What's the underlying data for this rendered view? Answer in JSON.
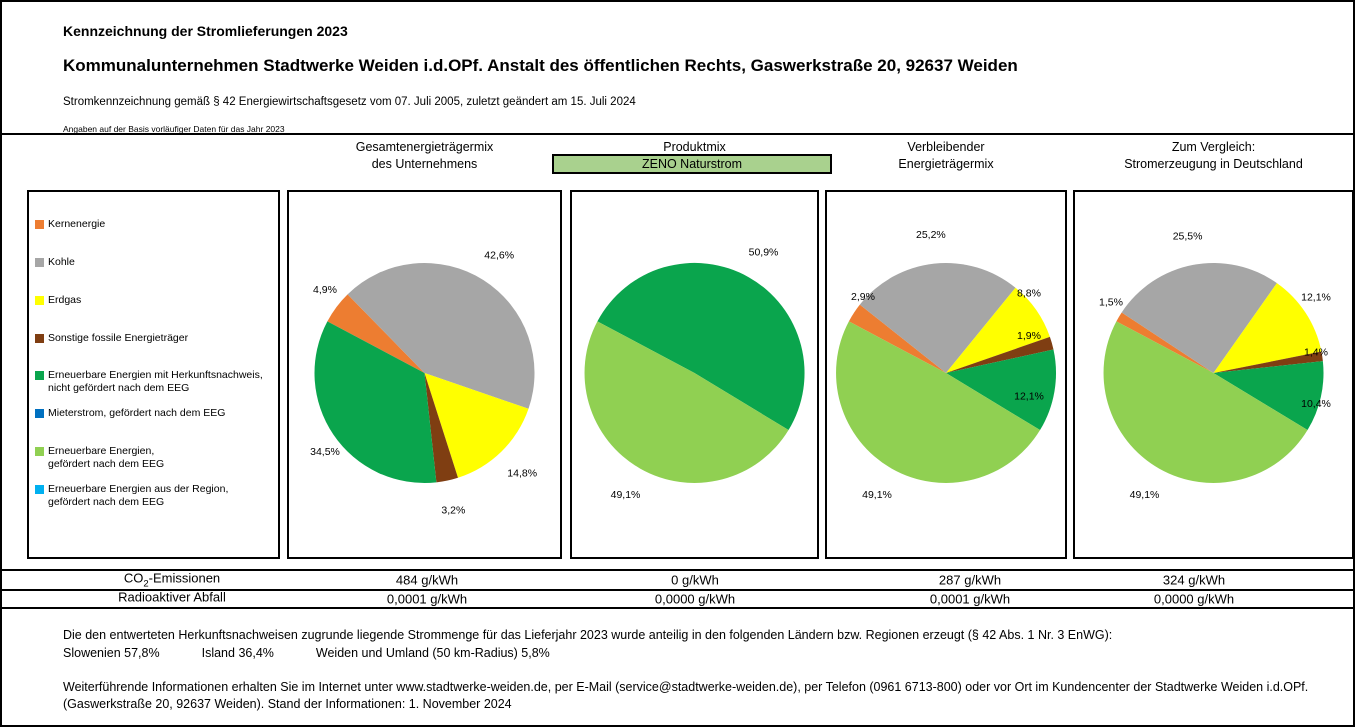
{
  "colors": {
    "kernenergie": "#ED7D31",
    "kohle": "#A6A6A6",
    "erdgas": "#FFFF00",
    "sonstige_fossile": "#7F3E12",
    "ee_herkunftsnachweis": "#0AA54D",
    "mieterstrom": "#0070C0",
    "ee_eeg": "#90D052",
    "ee_region": "#00B0F0",
    "produkt_highlight": "#A9D18E"
  },
  "header": {
    "title": "Kennzeichnung der Stromlieferungen 2023",
    "company": "Kommunalunternehmen Stadtwerke Weiden i.d.OPf. Anstalt des öffentlichen Rechts, Gaswerkstraße 20, 92637 Weiden",
    "legal": "Stromkennzeichnung gemäß § 42 Energiewirtschaftsgesetz vom 07. Juli 2005, zuletzt geändert am 15. Juli 2024",
    "note": "Angaben auf der Basis vorläufiger Daten für das Jahr 2023"
  },
  "columns": [
    {
      "line1": "Gesamtenergieträgermix",
      "line2": "des Unternehmens"
    },
    {
      "line1": "Produktmix",
      "line2": "ZENO Naturstrom"
    },
    {
      "line1": "Verbleibender",
      "line2": "Energieträgermix"
    },
    {
      "line1": "Zum Vergleich:",
      "line2": "Stromerzeugung in Deutschland"
    }
  ],
  "legend": {
    "items": [
      {
        "key": "kernenergie",
        "lines": [
          "Kernenergie"
        ]
      },
      {
        "key": "kohle",
        "lines": [
          "Kohle"
        ]
      },
      {
        "key": "erdgas",
        "lines": [
          "Erdgas"
        ]
      },
      {
        "key": "sonstige_fossile",
        "lines": [
          "Sonstige fossile Energieträger"
        ]
      },
      {
        "key": "ee_herkunftsnachweis",
        "lines": [
          "Erneuerbare Energien mit Herkunftsnachweis,",
          "nicht gefördert nach dem EEG"
        ]
      },
      {
        "key": "mieterstrom",
        "lines": [
          "Mieterstrom, gefördert nach dem EEG"
        ]
      },
      {
        "key": "ee_eeg",
        "lines": [
          "Erneuerbare Energien,",
          "gefördert nach dem EEG"
        ]
      },
      {
        "key": "ee_region",
        "lines": [
          "Erneuerbare Energien aus der Region,",
          "gefördert nach dem EEG"
        ]
      }
    ]
  },
  "chart_data": [
    {
      "type": "pie",
      "title": "Gesamtenergieträgermix des Unternehmens",
      "unit": "%",
      "start_angle_deg": -62,
      "direction": "clockwise",
      "slices": [
        {
          "key": "kernenergie",
          "label": "Kernenergie",
          "value": 4.9,
          "display": "4,9%"
        },
        {
          "key": "kohle",
          "label": "Kohle",
          "value": 42.6,
          "display": "42,6%"
        },
        {
          "key": "erdgas",
          "label": "Erdgas",
          "value": 14.8,
          "display": "14,8%"
        },
        {
          "key": "sonstige_fossile",
          "label": "Sonstige fossile Energieträger",
          "value": 3.2,
          "display": "3,2%"
        },
        {
          "key": "ee_herkunftsnachweis",
          "label": "Erneuerbare Energien mit Herkunftsnachweis, nicht gefördert nach dem EEG",
          "value": 34.5,
          "display": "34,5%"
        }
      ]
    },
    {
      "type": "pie",
      "title": "Produktmix ZENO Naturstrom",
      "unit": "%",
      "start_angle_deg": -62,
      "direction": "clockwise",
      "slices": [
        {
          "key": "ee_herkunftsnachweis",
          "label": "Erneuerbare Energien mit Herkunftsnachweis, nicht gefördert nach dem EEG",
          "value": 50.9,
          "display": "50,9%"
        },
        {
          "key": "ee_eeg",
          "label": "Erneuerbare Energien, gefördert nach dem EEG",
          "value": 49.1,
          "display": "49,1%"
        }
      ]
    },
    {
      "type": "pie",
      "title": "Verbleibender Energieträgermix",
      "unit": "%",
      "start_angle_deg": -62,
      "direction": "clockwise",
      "slices": [
        {
          "key": "kernenergie",
          "label": "Kernenergie",
          "value": 2.9,
          "display": "2,9%"
        },
        {
          "key": "kohle",
          "label": "Kohle",
          "value": 25.2,
          "display": "25,2%"
        },
        {
          "key": "erdgas",
          "label": "Erdgas",
          "value": 8.8,
          "display": "8,8%"
        },
        {
          "key": "sonstige_fossile",
          "label": "Sonstige fossile Energieträger",
          "value": 1.9,
          "display": "1,9%"
        },
        {
          "key": "ee_herkunftsnachweis",
          "label": "Erneuerbare Energien mit Herkunftsnachweis, nicht gefördert nach dem EEG",
          "value": 12.1,
          "display": "12,1%"
        },
        {
          "key": "ee_eeg",
          "label": "Erneuerbare Energien, gefördert nach dem EEG",
          "value": 49.1,
          "display": "49,1%"
        }
      ]
    },
    {
      "type": "pie",
      "title": "Zum Vergleich: Stromerzeugung in Deutschland",
      "unit": "%",
      "start_angle_deg": -62,
      "direction": "clockwise",
      "slices": [
        {
          "key": "kernenergie",
          "label": "Kernenergie",
          "value": 1.5,
          "display": "1,5%"
        },
        {
          "key": "kohle",
          "label": "Kohle",
          "value": 25.5,
          "display": "25,5%"
        },
        {
          "key": "erdgas",
          "label": "Erdgas",
          "value": 12.1,
          "display": "12,1%"
        },
        {
          "key": "sonstige_fossile",
          "label": "Sonstige fossile Energieträger",
          "value": 1.4,
          "display": "1,4%"
        },
        {
          "key": "ee_herkunftsnachweis",
          "label": "Erneuerbare Energien mit Herkunftsnachweis, nicht gefördert nach dem EEG",
          "value": 10.4,
          "display": "10,4%"
        },
        {
          "key": "ee_eeg",
          "label": "Erneuerbare Energien, gefördert nach dem EEG",
          "value": 49.1,
          "display": "49,1%"
        }
      ]
    }
  ],
  "table": {
    "rows": [
      {
        "label_main": "CO",
        "label_sub": "2",
        "label_rest": "-Emissionen",
        "values": [
          "484 g/kWh",
          "0 g/kWh",
          "287 g/kWh",
          "324 g/kWh"
        ]
      },
      {
        "label_main": "Radioaktiver Abfall",
        "label_sub": "",
        "label_rest": "",
        "values": [
          "0,0001 g/kWh",
          "0,0000 g/kWh",
          "0,0001 g/kWh",
          "0,0000 g/kWh"
        ]
      }
    ]
  },
  "footer": {
    "origin_intro": "Die den entwerteten Herkunftsnachweisen zugrunde liegende Strommenge für das Lieferjahr 2023 wurde anteilig in den folgenden Ländern bzw. Regionen erzeugt (§ 42 Abs. 1 Nr. 3 EnWG):",
    "regions": [
      "Slowenien 57,8%",
      "Island  36,4%",
      "Weiden und Umland (50 km-Radius) 5,8%"
    ],
    "info_line1": "Weiterführende Informationen erhalten Sie im Internet unter www.stadtwerke-weiden.de, per E-Mail (service@stadtwerke-weiden.de), per Telefon (0961 6713-800) oder vor Ort im Kundencenter der Stadtwerke Weiden i.d.OPf.",
    "info_line2": "(Gaswerkstraße 20, 92637 Weiden). Stand der Informationen: 1. November 2024"
  }
}
